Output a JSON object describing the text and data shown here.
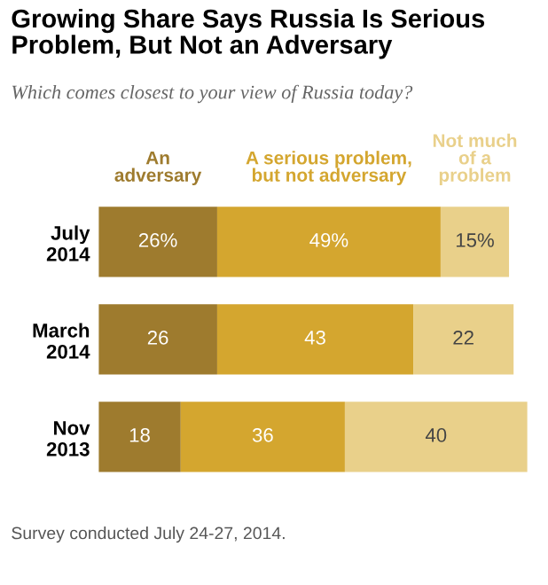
{
  "chart_data": {
    "type": "bar",
    "orientation": "horizontal",
    "stacked": true,
    "title": "Growing Share Says Russia Is Serious\nProblem, But Not an Adversary",
    "subtitle": "Which comes closest to your view of Russia today?",
    "categories": [
      "July\n2014",
      "March\n2014",
      "Nov\n2013"
    ],
    "series": [
      {
        "name": "An\nadversary",
        "color": "#9e7b2e",
        "values": [
          26,
          26,
          18
        ],
        "value_labels": [
          "26%",
          "26",
          "18"
        ]
      },
      {
        "name": "A serious problem,\nbut not adversary",
        "color": "#d4a62f",
        "values": [
          49,
          43,
          36
        ],
        "value_labels": [
          "49%",
          "43",
          "36"
        ]
      },
      {
        "name": "Not much\nof a\nproblem",
        "color": "#e9d08a",
        "values": [
          15,
          22,
          40
        ],
        "value_labels": [
          "15%",
          "22",
          "40"
        ]
      }
    ],
    "legend": "top",
    "annotations": [
      "Survey conducted July 24-27, 2014."
    ]
  }
}
